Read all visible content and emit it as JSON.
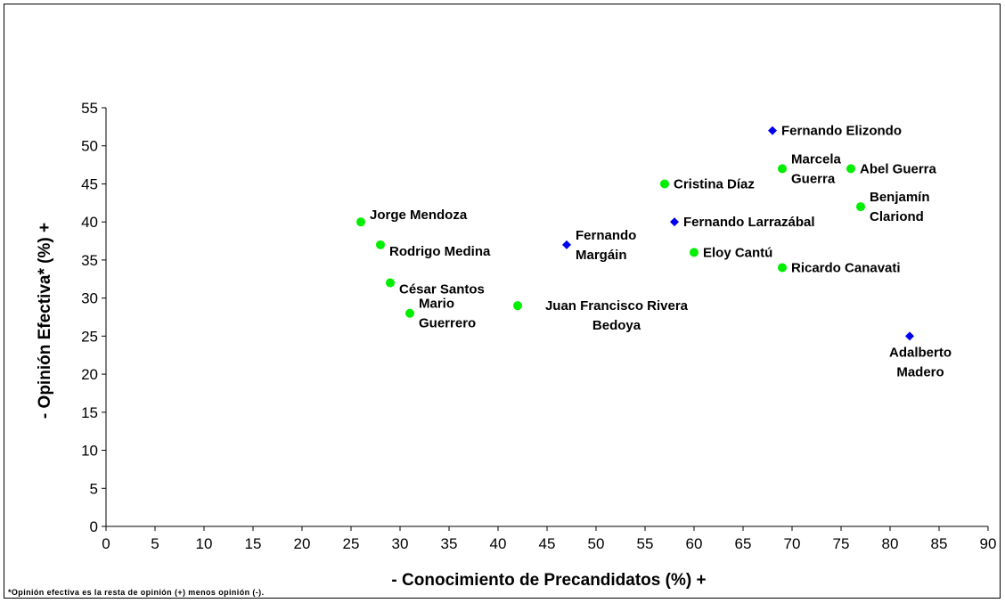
{
  "chart_data": {
    "type": "scatter",
    "xlabel": "- Conocimiento de Precandidatos (%) +",
    "ylabel": "- Opinión Efectiva* (%) +",
    "xlim": [
      0,
      90
    ],
    "ylim": [
      0,
      55
    ],
    "x_ticks": [
      0,
      5,
      10,
      15,
      20,
      25,
      30,
      35,
      40,
      45,
      50,
      55,
      60,
      65,
      70,
      75,
      80,
      85,
      90
    ],
    "y_ticks": [
      0,
      5,
      10,
      15,
      20,
      25,
      30,
      35,
      40,
      45,
      50,
      55
    ],
    "grid": false,
    "colors": {
      "green": "#00ee00",
      "blue": "#0000ee"
    },
    "points": [
      {
        "label": [
          "Fernando Elizondo"
        ],
        "x": 68,
        "y": 52,
        "marker": "diamond",
        "color": "#0000ee",
        "pos": "right"
      },
      {
        "label": [
          "Marcela",
          "Guerra"
        ],
        "x": 69,
        "y": 47,
        "marker": "circle",
        "color": "#00ee00",
        "pos": "right-split"
      },
      {
        "label": [
          "Abel Guerra"
        ],
        "x": 76,
        "y": 47,
        "marker": "circle",
        "color": "#00ee00",
        "pos": "right"
      },
      {
        "label": [
          "Cristina Díaz"
        ],
        "x": 57,
        "y": 45,
        "marker": "circle",
        "color": "#00ee00",
        "pos": "right"
      },
      {
        "label": [
          "Benjamín",
          "Clariond"
        ],
        "x": 77,
        "y": 42,
        "marker": "circle",
        "color": "#00ee00",
        "pos": "right-split"
      },
      {
        "label": [
          "Jorge Mendoza"
        ],
        "x": 26,
        "y": 40,
        "marker": "circle",
        "color": "#00ee00",
        "pos": "upper-right"
      },
      {
        "label": [
          "Fernando Larrazábal"
        ],
        "x": 58,
        "y": 40,
        "marker": "diamond",
        "color": "#0000ee",
        "pos": "right"
      },
      {
        "label": [
          "Rodrigo Medina"
        ],
        "x": 28,
        "y": 37,
        "marker": "circle",
        "color": "#00ee00",
        "pos": "lower-right"
      },
      {
        "label": [
          "Fernando",
          "Margáin"
        ],
        "x": 47,
        "y": 37,
        "marker": "diamond",
        "color": "#0000ee",
        "pos": "right-split"
      },
      {
        "label": [
          "Eloy Cantú"
        ],
        "x": 60,
        "y": 36,
        "marker": "circle",
        "color": "#00ee00",
        "pos": "right"
      },
      {
        "label": [
          "Ricardo Canavati"
        ],
        "x": 69,
        "y": 34,
        "marker": "circle",
        "color": "#00ee00",
        "pos": "right"
      },
      {
        "label": [
          "César Santos"
        ],
        "x": 29,
        "y": 32,
        "marker": "circle",
        "color": "#00ee00",
        "pos": "lower-right"
      },
      {
        "label": [
          "Juan Francisco Rivera",
          "Bedoya"
        ],
        "x": 42,
        "y": 29,
        "marker": "circle",
        "color": "#00ee00",
        "pos": "right-centered"
      },
      {
        "label": [
          "Mario",
          "Guerrero"
        ],
        "x": 31,
        "y": 28,
        "marker": "circle",
        "color": "#00ee00",
        "pos": "right-split"
      },
      {
        "label": [
          "Adalberto",
          "Madero"
        ],
        "x": 82,
        "y": 25,
        "marker": "diamond",
        "color": "#0000ee",
        "pos": "below"
      }
    ]
  },
  "footnote": "*Opinión efectiva es la resta de opinión (+) menos opinión (-)."
}
